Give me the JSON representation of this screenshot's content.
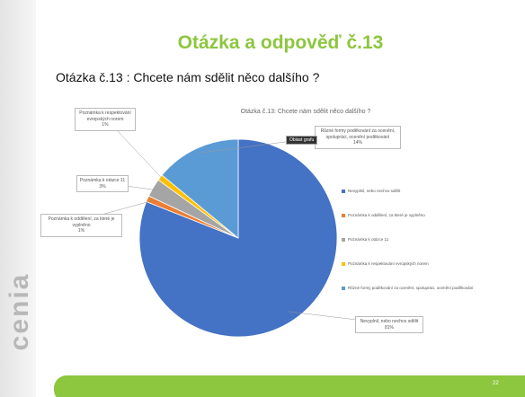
{
  "slide": {
    "title": "Otázka a odpověď č.13",
    "question": "Otázka č.13 : Chcete nám sdělit něco dalšího ?",
    "side_logo": "cenia",
    "page_number": "22",
    "tooltip": "Oblast grafu"
  },
  "chart_data": {
    "type": "pie",
    "title": "Otázka č.13: Chcete nám sdělit něco dalšího ?",
    "categories": [
      "Nevyplnil, nebo nechce sdělit",
      "Poznámka k oddělení, za které je vyplněno",
      "Poznámka k otázce 11",
      "Poznámka k respektování evropských norem",
      "Různé formy poděkování za ocenění, spolupráci, ocenění poděkování"
    ],
    "values": [
      81,
      1,
      3,
      1,
      14
    ],
    "value_labels": [
      "81%",
      "1%",
      "3%",
      "1%",
      "14%"
    ],
    "colors": [
      "#4472c4",
      "#ed7d31",
      "#a5a5a5",
      "#ffc000",
      "#5b9bd5"
    ],
    "legend": "right"
  }
}
